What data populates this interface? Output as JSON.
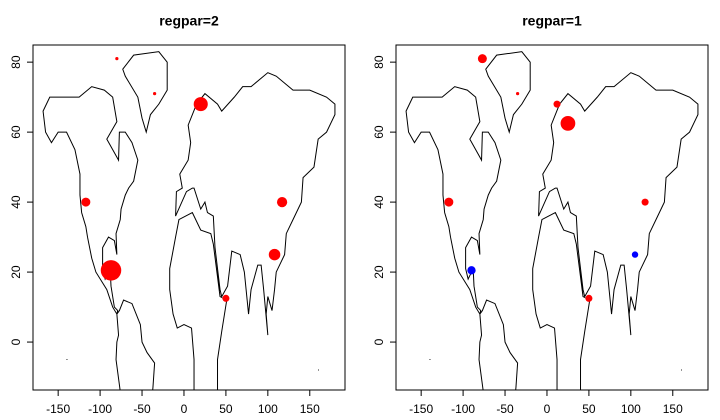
{
  "chart_data": [
    {
      "type": "bubble",
      "title": "regpar=2",
      "x": [
        -80,
        -35,
        20,
        117,
        -117,
        -87,
        108,
        50
      ],
      "values": [
        81,
        71,
        68,
        40,
        40,
        20.5,
        25,
        12.5
      ],
      "sizes": [
        0.5,
        0.5,
        2.2,
        1.6,
        1.4,
        3.2,
        1.8,
        1.1
      ],
      "colors": [
        "#ff0000",
        "#ff0000",
        "#ff0000",
        "#ff0000",
        "#ff0000",
        "#ff0000",
        "#ff0000",
        "#ff0000"
      ],
      "xlim": [
        -180,
        192
      ],
      "ylim": [
        -13.7,
        84.9
      ],
      "xticks": [
        -150,
        -100,
        -50,
        0,
        50,
        100,
        150
      ],
      "yticks": [
        0,
        20,
        40,
        60,
        80
      ]
    },
    {
      "type": "bubble",
      "title": "regpar=1",
      "x": [
        -77,
        -35,
        12,
        25,
        -117,
        117,
        -90,
        105,
        50
      ],
      "values": [
        81,
        71,
        68,
        62.5,
        40,
        40,
        20.5,
        25,
        12.5
      ],
      "sizes": [
        1.4,
        0.5,
        1.1,
        2.3,
        1.4,
        1.1,
        1.3,
        1.0,
        1.1
      ],
      "colors": [
        "#ff0000",
        "#ff0000",
        "#ff0000",
        "#ff0000",
        "#ff0000",
        "#ff0000",
        "#0000ff",
        "#0000ff",
        "#ff0000"
      ],
      "xlim": [
        -180,
        192
      ],
      "ylim": [
        -13.7,
        84.9
      ],
      "xticks": [
        -150,
        -100,
        -50,
        0,
        50,
        100,
        150
      ],
      "yticks": [
        0,
        20,
        40,
        60,
        80
      ]
    }
  ]
}
